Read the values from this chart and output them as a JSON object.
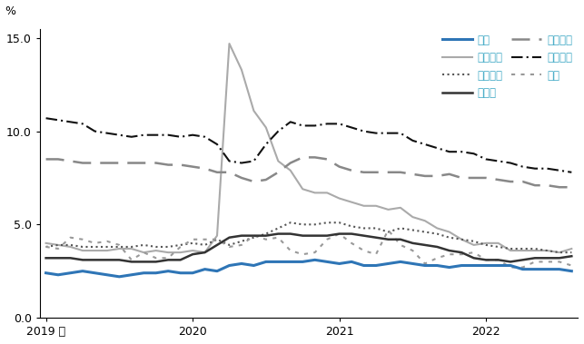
{
  "ylabel": "%",
  "ylim": [
    0.0,
    15.5
  ],
  "yticks": [
    0.0,
    5.0,
    10.0,
    15.0
  ],
  "ytick_labels": [
    "0.0",
    "5.0",
    "10.0",
    "15.0"
  ],
  "xtick_labels": [
    "2019 年",
    "2020",
    "2021",
    "2022"
  ],
  "xtick_positions": [
    0,
    12,
    24,
    36
  ],
  "legend_text_color": "#3fa8c5",
  "series": {
    "日本": {
      "color": "#2e75b6",
      "linewidth": 2.2,
      "linestyle": "solid",
      "dash_pattern": null,
      "data": [
        2.4,
        2.3,
        2.4,
        2.5,
        2.4,
        2.3,
        2.2,
        2.3,
        2.4,
        2.4,
        2.5,
        2.4,
        2.4,
        2.6,
        2.5,
        2.8,
        2.9,
        2.8,
        3.0,
        3.0,
        3.0,
        3.0,
        3.1,
        3.0,
        2.9,
        3.0,
        2.8,
        2.8,
        2.9,
        3.0,
        2.9,
        2.8,
        2.8,
        2.7,
        2.8,
        2.8,
        2.8,
        2.8,
        2.8,
        2.6,
        2.6,
        2.6,
        2.6,
        2.5
      ]
    },
    "アメリカ": {
      "color": "#aaaaaa",
      "linewidth": 1.5,
      "linestyle": "solid",
      "dash_pattern": null,
      "data": [
        4.0,
        3.9,
        3.8,
        3.6,
        3.6,
        3.6,
        3.7,
        3.7,
        3.5,
        3.6,
        3.5,
        3.5,
        3.6,
        3.5,
        4.4,
        14.7,
        13.3,
        11.1,
        10.2,
        8.4,
        7.9,
        6.9,
        6.7,
        6.7,
        6.4,
        6.2,
        6.0,
        6.0,
        5.8,
        5.9,
        5.4,
        5.2,
        4.8,
        4.6,
        4.2,
        3.9,
        4.0,
        4.0,
        3.6,
        3.6,
        3.6,
        3.6,
        3.5,
        3.7
      ]
    },
    "イギリス": {
      "color": "#555555",
      "linewidth": 1.5,
      "linestyle": "dotted",
      "dash_pattern": null,
      "data": [
        3.8,
        3.9,
        3.9,
        3.8,
        3.8,
        3.8,
        3.8,
        3.8,
        3.9,
        3.8,
        3.8,
        3.9,
        4.0,
        3.9,
        4.2,
        3.9,
        4.1,
        4.3,
        4.5,
        4.8,
        5.1,
        5.0,
        5.0,
        5.1,
        5.1,
        4.9,
        4.8,
        4.8,
        4.6,
        4.8,
        4.7,
        4.6,
        4.5,
        4.3,
        4.2,
        4.1,
        3.9,
        3.8,
        3.7,
        3.7,
        3.7,
        3.6,
        3.5,
        3.5
      ]
    },
    "ドイツ": {
      "color": "#333333",
      "linewidth": 1.8,
      "linestyle": "solid",
      "dash_pattern": null,
      "data": [
        3.2,
        3.2,
        3.2,
        3.1,
        3.1,
        3.1,
        3.1,
        3.0,
        3.0,
        3.0,
        3.1,
        3.1,
        3.4,
        3.5,
        3.9,
        4.3,
        4.4,
        4.4,
        4.4,
        4.5,
        4.5,
        4.4,
        4.4,
        4.4,
        4.5,
        4.5,
        4.4,
        4.3,
        4.2,
        4.2,
        4.0,
        3.9,
        3.8,
        3.6,
        3.5,
        3.2,
        3.1,
        3.1,
        3.0,
        3.1,
        3.2,
        3.2,
        3.2,
        3.3
      ]
    },
    "フランス": {
      "color": "#888888",
      "linewidth": 1.8,
      "linestyle": "dashed",
      "dash_pattern": [
        8,
        4
      ],
      "data": [
        8.5,
        8.5,
        8.4,
        8.3,
        8.3,
        8.3,
        8.3,
        8.3,
        8.3,
        8.3,
        8.2,
        8.2,
        8.1,
        8.0,
        7.8,
        7.8,
        7.5,
        7.3,
        7.4,
        7.8,
        8.3,
        8.6,
        8.6,
        8.5,
        8.1,
        7.9,
        7.8,
        7.8,
        7.8,
        7.8,
        7.7,
        7.6,
        7.6,
        7.7,
        7.5,
        7.5,
        7.5,
        7.4,
        7.3,
        7.3,
        7.1,
        7.1,
        7.0,
        7.0
      ]
    },
    "イタリア": {
      "color": "#111111",
      "linewidth": 1.5,
      "linestyle": "dashdot",
      "dash_pattern": [
        6,
        2,
        1,
        2
      ],
      "data": [
        10.7,
        10.6,
        10.5,
        10.4,
        10.0,
        9.9,
        9.8,
        9.7,
        9.8,
        9.8,
        9.8,
        9.7,
        9.8,
        9.7,
        9.3,
        8.4,
        8.3,
        8.4,
        9.3,
        10.0,
        10.5,
        10.3,
        10.3,
        10.4,
        10.4,
        10.2,
        10.0,
        9.9,
        9.9,
        9.9,
        9.5,
        9.3,
        9.1,
        8.9,
        8.9,
        8.8,
        8.5,
        8.4,
        8.3,
        8.1,
        8.0,
        8.0,
        7.9,
        7.8
      ]
    },
    "韓国": {
      "color": "#999999",
      "linewidth": 1.5,
      "linestyle": "dotted",
      "dash_pattern": [
        2,
        3
      ],
      "data": [
        3.8,
        3.7,
        4.3,
        4.2,
        4.0,
        4.1,
        3.9,
        3.1,
        3.5,
        3.2,
        3.2,
        3.8,
        4.2,
        4.2,
        4.2,
        3.8,
        3.9,
        4.4,
        4.2,
        4.3,
        3.6,
        3.4,
        3.5,
        4.2,
        4.5,
        4.0,
        3.6,
        3.4,
        4.7,
        3.9,
        3.6,
        2.9,
        3.2,
        3.4,
        3.4,
        3.5,
        3.1,
        3.1,
        2.7,
        2.7,
        3.0,
        3.0,
        3.0,
        2.8
      ]
    }
  },
  "legend_order": [
    "日本",
    "アメリカ",
    "イギリス",
    "ドイツ",
    "フランス",
    "イタリア",
    "韓国"
  ]
}
